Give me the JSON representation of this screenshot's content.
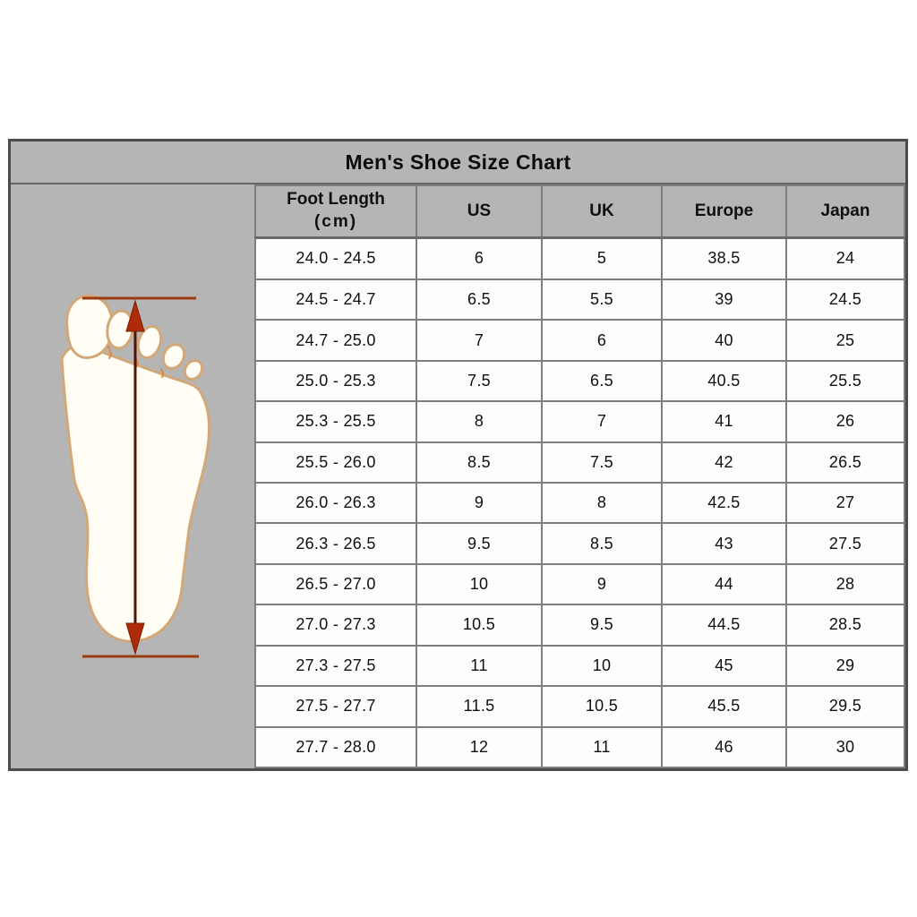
{
  "chart_data": {
    "type": "table",
    "title": "Men's Shoe Size Chart",
    "columns": [
      {
        "label": "Foot Length",
        "sub": "(cm)"
      },
      {
        "label": "US",
        "sub": ""
      },
      {
        "label": "UK",
        "sub": ""
      },
      {
        "label": "Europe",
        "sub": ""
      },
      {
        "label": "Japan",
        "sub": ""
      }
    ],
    "rows": [
      [
        "24.0 - 24.5",
        "6",
        "5",
        "38.5",
        "24"
      ],
      [
        "24.5 - 24.7",
        "6.5",
        "5.5",
        "39",
        "24.5"
      ],
      [
        "24.7 - 25.0",
        "7",
        "6",
        "40",
        "25"
      ],
      [
        "25.0 - 25.3",
        "7.5",
        "6.5",
        "40.5",
        "25.5"
      ],
      [
        "25.3 - 25.5",
        "8",
        "7",
        "41",
        "26"
      ],
      [
        "25.5 - 26.0",
        "8.5",
        "7.5",
        "42",
        "26.5"
      ],
      [
        "26.0 - 26.3",
        "9",
        "8",
        "42.5",
        "27"
      ],
      [
        "26.3 - 26.5",
        "9.5",
        "8.5",
        "43",
        "27.5"
      ],
      [
        "26.5 - 27.0",
        "10",
        "9",
        "44",
        "28"
      ],
      [
        "27.0 - 27.3",
        "10.5",
        "9.5",
        "44.5",
        "28.5"
      ],
      [
        "27.3 - 27.5",
        "11",
        "10",
        "45",
        "29"
      ],
      [
        "27.5 - 27.7",
        "11.5",
        "10.5",
        "45.5",
        "29.5"
      ],
      [
        "27.7 - 28.0",
        "12",
        "11",
        "46",
        "30"
      ]
    ],
    "layout_hints": {
      "grid": "on",
      "header_position": "top",
      "illustration_position": "left-column"
    },
    "illustration": {
      "name": "foot-length-measurement-diagram",
      "description": "footprint outline with vertical double-headed arrow between two horizontal measurement lines"
    },
    "colors": {
      "panel_background": "#b5b5b5",
      "cell_background": "#fdfdfd",
      "grid_line": "#7e7e7e",
      "outer_border": "#4c4c4c",
      "text": "#101010",
      "foot_outline": "#d2a878",
      "foot_fill": "#fffdf4",
      "arrow_red": "#ad2b06",
      "measure_line_red": "#9c3a10"
    }
  }
}
